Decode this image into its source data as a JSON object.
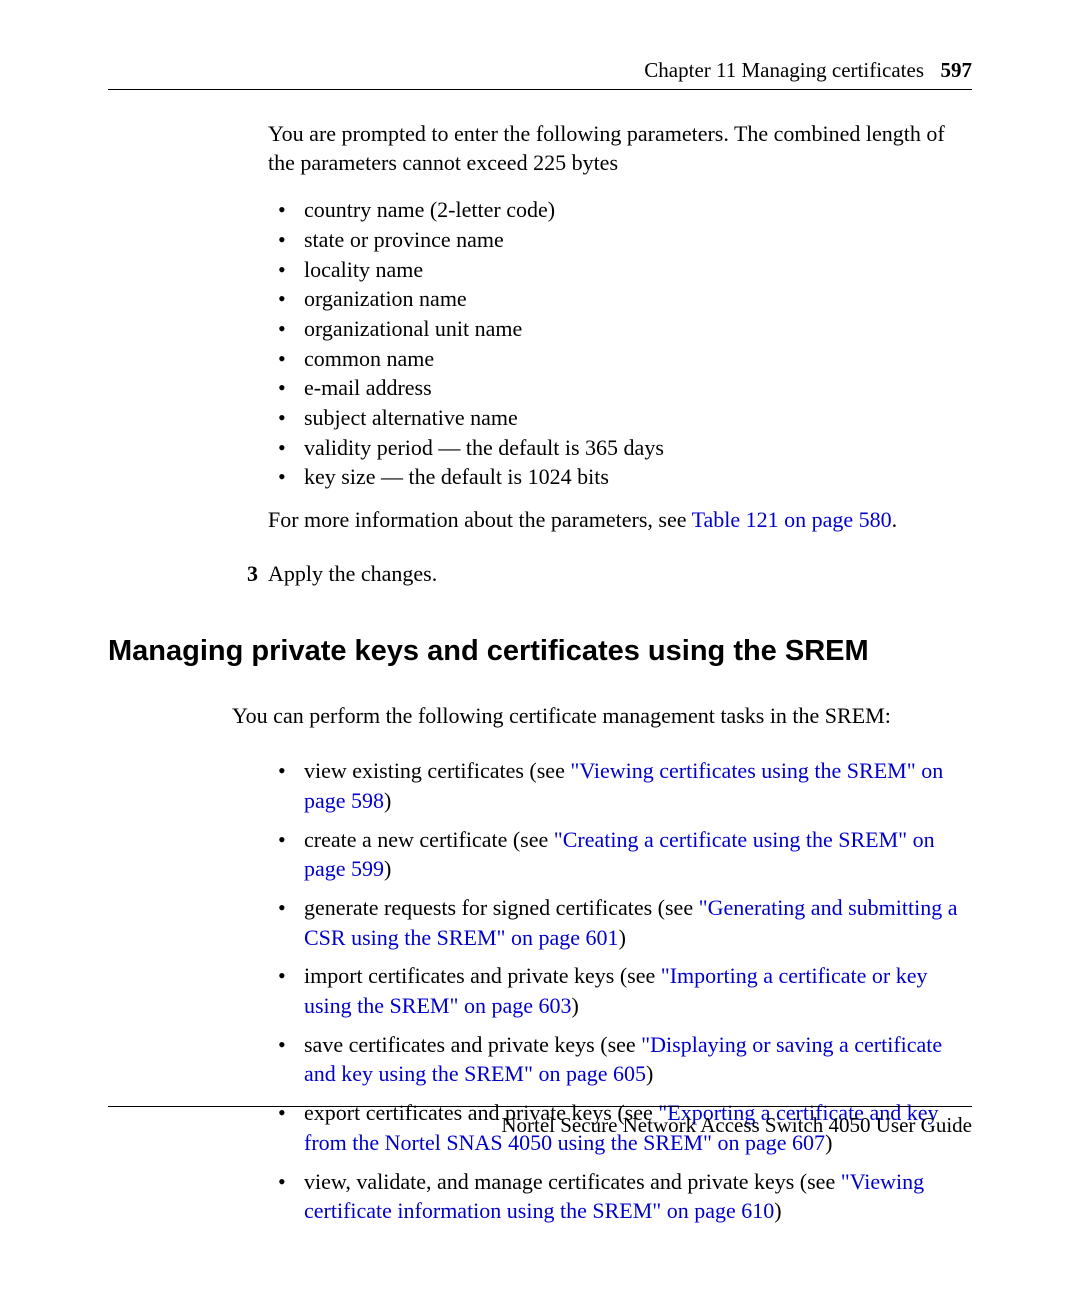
{
  "header": {
    "chapter": "Chapter 11  Managing certificates",
    "page_number": "597"
  },
  "intro1": "You are prompted to enter the following parameters. The combined length of the parameters cannot exceed 225 bytes",
  "param_list": [
    "country name (2-letter code)",
    "state or province name",
    "locality name",
    "organization name",
    "organizational unit name",
    "common name",
    "e-mail address",
    "subject alternative name",
    "validity period — the default is 365 days",
    "key size — the default is 1024 bits"
  ],
  "more_info_prefix": "For more information about the parameters, see ",
  "more_info_link": "Table 121 on page 580",
  "more_info_suffix": ".",
  "step3_num": "3",
  "step3_text": "Apply the changes.",
  "section_heading": "Managing private keys and certificates using the SREM",
  "intro2": "You can perform the following certificate management tasks in the SREM:",
  "tasks": [
    {
      "pre": "view existing certificates (see ",
      "link": "\"Viewing certificates using the SREM\" on page 598",
      "post": ")"
    },
    {
      "pre": "create a new certificate (see ",
      "link": "\"Creating a certificate using the SREM\" on page 599",
      "post": ")"
    },
    {
      "pre": "generate requests for signed certificates (see ",
      "link": "\"Generating and submitting a CSR using the SREM\" on page 601",
      "post": ")"
    },
    {
      "pre": "import certificates and private keys (see ",
      "link": "\"Importing a certificate or key using the SREM\" on page 603",
      "post": ")"
    },
    {
      "pre": "save certificates and private keys (see ",
      "link": "\"Displaying or saving a certificate and key using the SREM\" on page 605",
      "post": ")"
    },
    {
      "pre": "export certificates and private keys (see ",
      "link": "\"Exporting a certificate and key from the Nortel SNAS 4050 using the SREM\" on page 607",
      "post": ")"
    },
    {
      "pre": "view, validate, and manage certificates and private keys (see ",
      "link": "\"Viewing certificate information using the SREM\" on page 610",
      "post": ")"
    }
  ],
  "footer": "Nortel Secure Network Access Switch 4050 User Guide",
  "colors": {
    "link": "#0000cc",
    "text": "#000000",
    "bg": "#ffffff"
  }
}
